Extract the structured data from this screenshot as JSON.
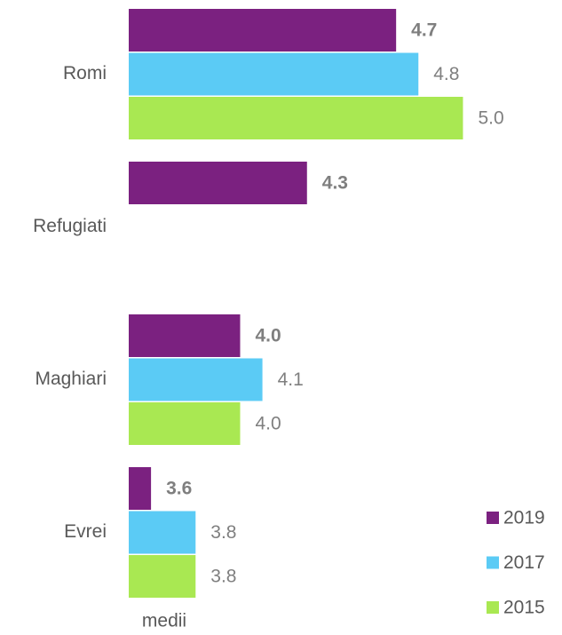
{
  "chart_data": {
    "type": "bar",
    "orientation": "horizontal",
    "categories": [
      "Romi",
      "Refugiati",
      "Maghiari",
      "Evrei"
    ],
    "series": [
      {
        "name": "2019",
        "color": "#7b2180",
        "values": [
          4.7,
          4.3,
          4.0,
          3.6
        ],
        "value_labels": [
          "4.7",
          "4.3",
          "4.0",
          "3.6"
        ],
        "label_weight": "bold"
      },
      {
        "name": "2017",
        "color": "#5bcbf5",
        "values": [
          4.8,
          null,
          4.1,
          3.8
        ],
        "value_labels": [
          "4.8",
          null,
          "4.1",
          "3.8"
        ],
        "label_weight": "normal"
      },
      {
        "name": "2015",
        "color": "#a9e852",
        "values": [
          5.0,
          null,
          4.0,
          3.8
        ],
        "value_labels": [
          "5.0",
          null,
          "4.0",
          "3.8"
        ],
        "label_weight": "normal"
      }
    ],
    "xlabel": "medii",
    "xlim": [
      3.5,
      5.05
    ],
    "legend": "bottom-right"
  }
}
